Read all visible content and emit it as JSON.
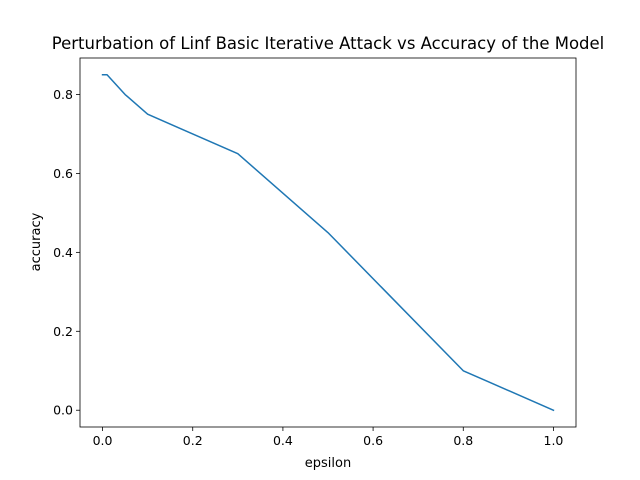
{
  "chart_data": {
    "type": "line",
    "title": "Perturbation of Linf Basic Iterative Attack vs Accuracy of the Model",
    "xlabel": "epsilon",
    "ylabel": "accuracy",
    "xlim": [
      -0.05,
      1.05
    ],
    "ylim": [
      -0.0425,
      0.8925
    ],
    "xticks": [
      0.0,
      0.2,
      0.4,
      0.6,
      0.8,
      1.0
    ],
    "xtick_labels": [
      "0.0",
      "0.2",
      "0.4",
      "0.6",
      "0.8",
      "1.0"
    ],
    "yticks": [
      0.0,
      0.2,
      0.4,
      0.6,
      0.8
    ],
    "ytick_labels": [
      "0.0",
      "0.2",
      "0.4",
      "0.6",
      "0.8"
    ],
    "grid": false,
    "series": [
      {
        "color": "#1f77b4",
        "x": [
          0.0,
          0.01,
          0.05,
          0.1,
          0.3,
          0.5,
          0.8,
          1.0
        ],
        "y": [
          0.85,
          0.85,
          0.8,
          0.75,
          0.65,
          0.45,
          0.1,
          0.0
        ]
      }
    ]
  }
}
